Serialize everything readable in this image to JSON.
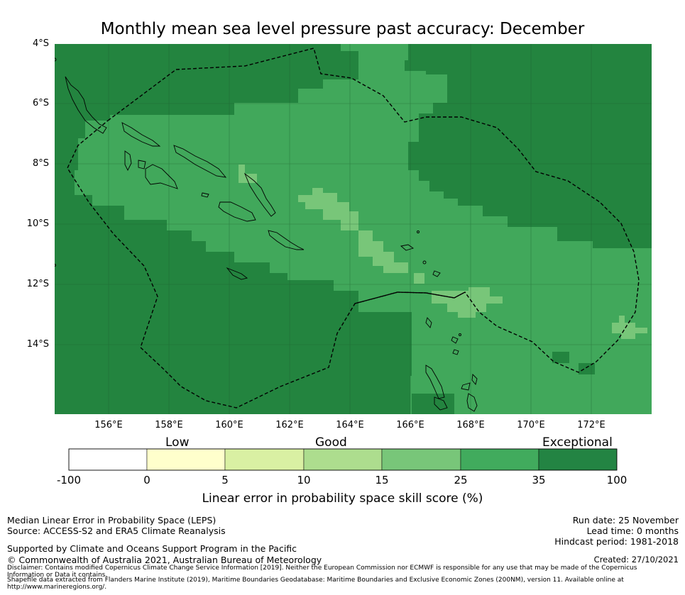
{
  "title": "Monthly mean sea level pressure past accuracy: December",
  "map": {
    "lat_labels": [
      "4°S",
      "6°S",
      "8°S",
      "10°S",
      "12°S",
      "14°S"
    ],
    "lon_labels": [
      "156°E",
      "158°E",
      "160°E",
      "162°E",
      "164°E",
      "166°E",
      "168°E",
      "170°E",
      "172°E"
    ],
    "colors": {
      "exceptional": "#23843f",
      "very_good": "#41a85b",
      "good": "#78c679",
      "fair": "#addd8e",
      "water_line": "#000000"
    }
  },
  "colorbar": {
    "category_labels": [
      "Low",
      "Good",
      "Exceptional"
    ],
    "tick_labels": [
      "-100",
      "0",
      "5",
      "10",
      "15",
      "25",
      "35",
      "100"
    ],
    "colors": [
      "#ffffff",
      "#ffffcc",
      "#d9f0a3",
      "#addd8e",
      "#78c679",
      "#41ab5d",
      "#238443"
    ],
    "label": "Linear error in probability space skill score (%)"
  },
  "footer": {
    "left_line1": "Median Linear Error in Probability Space (LEPS)",
    "left_line2": "Source: ACCESS-S2 and ERA5 Climate Reanalysis",
    "left_line3": "Supported by Climate and Oceans Support Program in the Pacific",
    "left_line4": "© Commonwealth of Australia 2021, Australian Bureau of Meteorology",
    "right_line1": "Run date: 25 November",
    "right_line2": "Lead time: 0 months",
    "right_line3": "Hindcast period: 1981-2018",
    "created": "Created: 27/10/2021",
    "disclaimer": "Disclaimer: Contains modified Copernicus Climate Change Service Information [2019]. Neither the European Commission nor ECMWF is responsible for any use that may be made of the Copernicus Information or Data it contains.",
    "shapefile": "Shapefile data extracted from Flanders Marine Institute (2019), Maritime Boundaries Geodatabase: Maritime Boundaries and Exclusive Economic Zones (200NM), version 11. Available online at http://www.marineregions.org/."
  }
}
